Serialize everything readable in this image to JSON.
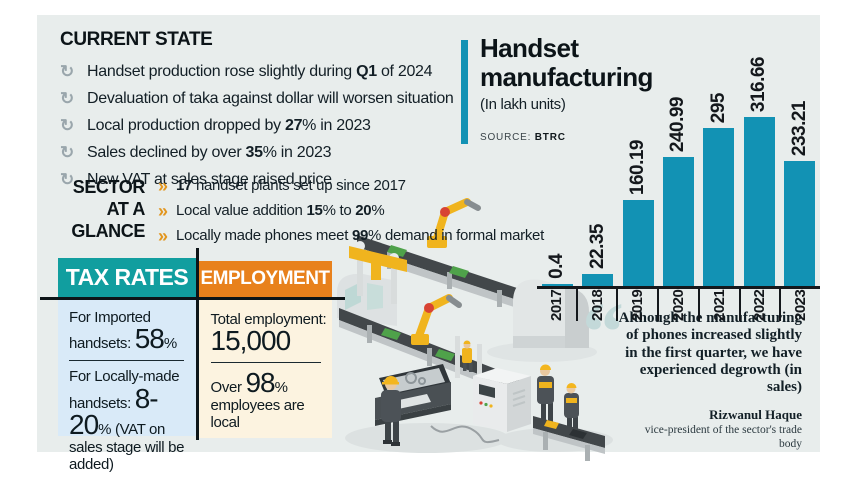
{
  "glyphs": {
    "bullet_icon": "↻",
    "chevron_icon": "»",
    "quote_mark": "“"
  },
  "colors": {
    "teal": "#119e9f",
    "orange": "#e8811c",
    "bar": "#1292b4",
    "tax_body": "#d9eaf8",
    "employment_body": "#fcf3e0",
    "canvas_bg": "#e8edec",
    "quote_mark": "#c3d9d9",
    "bullet": "#9aa6ac",
    "chevron": "#e2961e",
    "ink": "#10181c"
  },
  "current_state": {
    "title": "CURRENT STATE",
    "items": [
      "Handset production rose slightly during **Q1** of 2024",
      "Devaluation of taka against dollar will worsen situation",
      "Local production dropped by **27**% in 2023",
      "Sales declined by over **35**% in 2023",
      "New VAT at sales stage raised price"
    ]
  },
  "sector_glance": {
    "title_lines": [
      "SECTOR",
      "AT A",
      "GLANCE"
    ],
    "items": [
      "**17** handset plants set up since 2017",
      "Local value addition **15**% to **20**%",
      "Locally made phones meet **99**% demand in formal market"
    ]
  },
  "tax_rates": {
    "title": "TAX RATES",
    "blocks": [
      "For Imported handsets: {{58}}%",
      "For Locally-made handsets: {{8-20}}% (VAT on sales stage will be added)"
    ]
  },
  "employment": {
    "title": "EMPLOYMENT",
    "blocks": [
      "Total employment: {{15,000}}",
      "Over {{98}}% employees are local"
    ]
  },
  "chart_data": {
    "type": "bar",
    "title": "Handset manufacturing",
    "subtitle": "(In lakh units)",
    "source_label": "SOURCE:",
    "source": "BTRC",
    "xlabel": "",
    "ylabel": "lakh units",
    "categories": [
      "2017",
      "2018",
      "2019",
      "2020",
      "2021",
      "2022",
      "2023"
    ],
    "values": [
      0.4,
      22.35,
      160.19,
      240.99,
      295,
      316.66,
      233.21
    ],
    "value_labels": [
      "0.4",
      "22.35",
      "160.19",
      "240.99",
      "295",
      "316.66",
      "233.21"
    ],
    "ylim": [
      0,
      330
    ],
    "bar_color": "#1292b4",
    "grid": false,
    "label_orientation": "vertical"
  },
  "quote": {
    "text": "Although the manufacturing of phones increased slightly in the first quarter, we have experienced degrowth (in sales)",
    "author": "Rizwanul Haque",
    "role": "vice-president of the sector's trade body"
  }
}
